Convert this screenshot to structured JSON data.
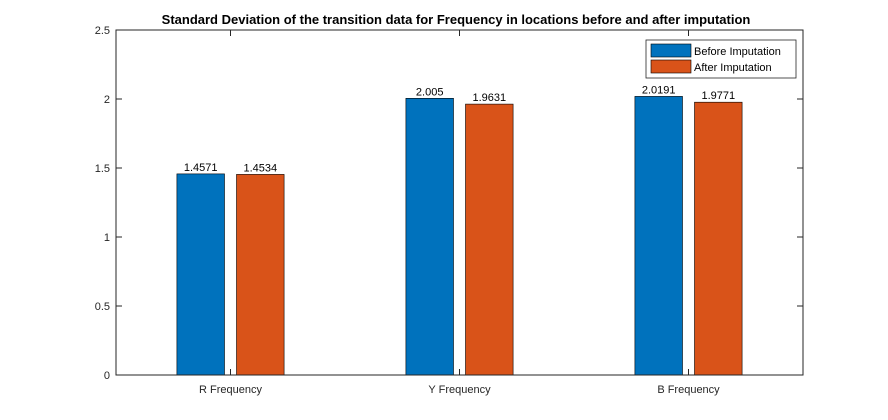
{
  "chart_data": {
    "type": "bar",
    "title": "Standard Deviation of the transition data for Frequency in locations before and after imputation",
    "categories": [
      "R Frequency",
      "Y Frequency",
      "B Frequency"
    ],
    "series": [
      {
        "name": "Before Imputation",
        "color": "#0072BD",
        "values": [
          1.4571,
          2.005,
          2.0191
        ],
        "labels": [
          "1.4571",
          "2.005",
          "2.0191"
        ]
      },
      {
        "name": "After Imputation",
        "color": "#D95319",
        "values": [
          1.4534,
          1.9631,
          1.9771
        ],
        "labels": [
          "1.4534",
          "1.9631",
          "1.9771"
        ]
      }
    ],
    "xlabel": "",
    "ylabel": "",
    "ylim": [
      0,
      2.5
    ],
    "yticks": [
      "0",
      "0.5",
      "1",
      "1.5",
      "2",
      "2.5"
    ],
    "legend_position": "top-right",
    "grid": false
  }
}
